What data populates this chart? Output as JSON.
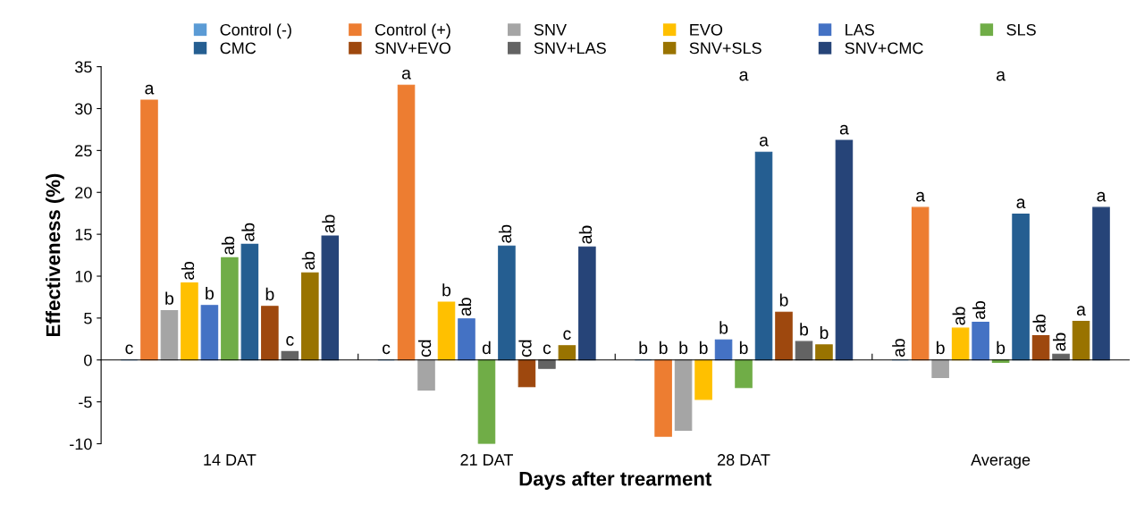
{
  "chart_data": {
    "type": "bar",
    "xlabel": "Days after trearment",
    "ylabel": "Effectiveness (%)",
    "categories": [
      "14 DAT",
      "21 DAT",
      "28 DAT",
      "Average"
    ],
    "ylim": [
      -10,
      35
    ],
    "yticks": [
      -10,
      -5,
      0,
      5,
      10,
      15,
      20,
      25,
      30,
      35
    ],
    "legend": "top",
    "series": [
      {
        "name": "Control (-)",
        "color": "#5b9bd5",
        "values": [
          0,
          0,
          0,
          0
        ],
        "value_labels": [
          "c",
          "c",
          "b",
          "ab"
        ]
      },
      {
        "name": "Control (+)",
        "color": "#ed7d31",
        "values": [
          31.0,
          32.8,
          -9.1,
          18.2
        ],
        "value_labels": [
          "a",
          "a",
          "b",
          "a"
        ]
      },
      {
        "name": "SNV",
        "color": "#a5a5a5",
        "values": [
          5.9,
          -3.6,
          -8.4,
          -2.1
        ],
        "value_labels": [
          "b",
          "cd",
          "b",
          "b"
        ]
      },
      {
        "name": "EVO",
        "color": "#ffc000",
        "values": [
          9.2,
          6.9,
          -4.7,
          3.8
        ],
        "value_labels": [
          "ab",
          "b",
          "b",
          "ab"
        ]
      },
      {
        "name": "LAS",
        "color": "#4472c4",
        "values": [
          6.5,
          4.9,
          2.4,
          4.5
        ],
        "value_labels": [
          "b",
          "ab",
          "b",
          "ab"
        ]
      },
      {
        "name": "SLS",
        "color": "#70ad47",
        "values": [
          12.2,
          -10.0,
          -3.3,
          -0.3
        ],
        "value_labels": [
          "ab",
          "d",
          "b",
          "b"
        ]
      },
      {
        "name": "CMC",
        "color": "#255e91",
        "values": [
          13.8,
          13.6,
          24.8,
          17.4
        ],
        "value_labels": [
          "ab",
          "ab",
          "a",
          "a"
        ]
      },
      {
        "name": "SNV+EVO",
        "color": "#9e480e",
        "values": [
          6.4,
          -3.2,
          5.7,
          2.9
        ],
        "value_labels": [
          "b",
          "cd",
          "b",
          "ab"
        ]
      },
      {
        "name": "SNV+LAS",
        "color": "#636363",
        "values": [
          1.0,
          -1.0,
          2.2,
          0.7
        ],
        "value_labels": [
          "c",
          "c",
          "b",
          "ab"
        ]
      },
      {
        "name": "SNV+SLS",
        "color": "#997300",
        "values": [
          10.4,
          1.7,
          1.8,
          4.6
        ],
        "value_labels": [
          "ab",
          "c",
          "b",
          "a"
        ]
      },
      {
        "name": "SNV+CMC",
        "color": "#264478",
        "values": [
          14.8,
          13.5,
          26.2,
          18.2
        ],
        "value_labels": [
          "ab",
          "ab",
          "a",
          "a"
        ]
      }
    ],
    "annotations": [
      "a",
      "a"
    ]
  }
}
